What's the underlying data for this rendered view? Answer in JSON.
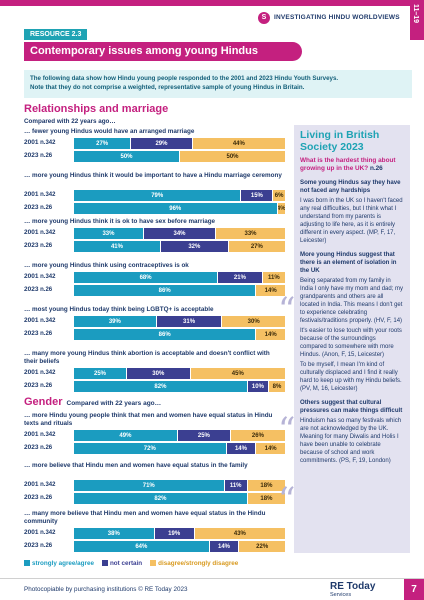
{
  "header": {
    "series_badge": "S",
    "series_text": "INVESTIGATING HINDU WORLDVIEWS",
    "side_tab": "11–19",
    "resource_label": "RESOURCE 2.3",
    "title": "Contemporary issues among young Hindus"
  },
  "intro": {
    "line1": "The following data show how Hindu young people responded to the 2001 and 2023 Hindu Youth Surveys.",
    "line2": "Note that they do not comprise a weighted, representative sample of young Hindus in Britain."
  },
  "relationships": {
    "heading": "Relationships and marriage",
    "compared": "Compared with 22 years ago…",
    "questions": [
      {
        "text": "… fewer young Hindus would have an arranged marriage",
        "rows": [
          {
            "year": "2001",
            "n": "n.342",
            "values": [
              27,
              29,
              44
            ],
            "labels": [
              "27%",
              "29%",
              "44%"
            ]
          },
          {
            "year": "2023",
            "n": "n.26",
            "values": [
              50,
              0,
              50
            ],
            "labels": [
              "50%",
              "",
              "50%"
            ]
          }
        ]
      },
      {
        "text": "… more young Hindus think it would be important to have a Hindu marriage ceremony",
        "rows": [
          {
            "year": "2001",
            "n": "n.342",
            "values": [
              79,
              15,
              6
            ],
            "labels": [
              "79%",
              "15%",
              "6%"
            ]
          },
          {
            "year": "2023",
            "n": "n.26",
            "values": [
              96,
              0,
              4
            ],
            "labels": [
              "96%",
              "",
              "4%"
            ]
          }
        ]
      },
      {
        "text": "… more young Hindus think it is ok to have sex before marriage",
        "rows": [
          {
            "year": "2001",
            "n": "n.342",
            "values": [
              33,
              34,
              33
            ],
            "labels": [
              "33%",
              "34%",
              "33%"
            ]
          },
          {
            "year": "2023",
            "n": "n.26",
            "values": [
              41,
              32,
              27
            ],
            "labels": [
              "41%",
              "32%",
              "27%"
            ]
          }
        ]
      },
      {
        "text": "… more young Hindus think using contraceptives is ok",
        "rows": [
          {
            "year": "2001",
            "n": "n.342",
            "values": [
              68,
              21,
              11
            ],
            "labels": [
              "68%",
              "21%",
              "11%"
            ]
          },
          {
            "year": "2023",
            "n": "n.26",
            "values": [
              86,
              0,
              14
            ],
            "labels": [
              "86%",
              "",
              "14%"
            ]
          }
        ]
      },
      {
        "text": "… most young Hindus today think being LGBTQ+ is acceptable",
        "rows": [
          {
            "year": "2001",
            "n": "n.342",
            "values": [
              39,
              31,
              30
            ],
            "labels": [
              "39%",
              "31%",
              "30%"
            ]
          },
          {
            "year": "2023",
            "n": "n.26",
            "values": [
              86,
              0,
              14
            ],
            "labels": [
              "86%",
              "",
              "14%"
            ]
          }
        ]
      },
      {
        "text": "… many more young Hindus think abortion is acceptable and doesn't conflict with their beliefs",
        "rows": [
          {
            "year": "2001",
            "n": "n.342",
            "values": [
              25,
              30,
              45
            ],
            "labels": [
              "25%",
              "30%",
              "45%"
            ]
          },
          {
            "year": "2023",
            "n": "n.26",
            "values": [
              82,
              10,
              8
            ],
            "labels": [
              "82%",
              "10%",
              "8%"
            ]
          }
        ]
      }
    ]
  },
  "gender": {
    "heading": "Gender",
    "compared": "Compared with 22 years ago…",
    "questions": [
      {
        "text": "… more Hindu young people think that men and women have equal status in Hindu texts and rituals",
        "rows": [
          {
            "year": "2001",
            "n": "n.342",
            "values": [
              49,
              25,
              26
            ],
            "labels": [
              "49%",
              "25%",
              "26%"
            ]
          },
          {
            "year": "2023",
            "n": "n.26",
            "values": [
              72,
              14,
              14
            ],
            "labels": [
              "72%",
              "14%",
              "14%"
            ]
          }
        ]
      },
      {
        "text": "… more believe that Hindu men and women have equal status in the family",
        "rows": [
          {
            "year": "2001",
            "n": "n.342",
            "values": [
              71,
              11,
              18
            ],
            "labels": [
              "71%",
              "11%",
              "18%"
            ]
          },
          {
            "year": "2023",
            "n": "n.26",
            "values": [
              82,
              0,
              18
            ],
            "labels": [
              "82%",
              "",
              "18%"
            ]
          }
        ]
      },
      {
        "text": "… many more believe that Hindu men and women have equal status in the Hindu community",
        "rows": [
          {
            "year": "2001",
            "n": "n.342",
            "values": [
              38,
              19,
              43
            ],
            "labels": [
              "38%",
              "19%",
              "43%"
            ]
          },
          {
            "year": "2023",
            "n": "n.26",
            "values": [
              64,
              14,
              22
            ],
            "labels": [
              "64%",
              "14%",
              "22%"
            ]
          }
        ]
      }
    ]
  },
  "legend": {
    "agree": "strongly agree/agree",
    "notsure": "not certain",
    "disagree": "disagree/strongly disagree"
  },
  "colors": {
    "agree": "#1b9cc0",
    "notsure": "#3b3f91",
    "disagree": "#f5c063",
    "accent": "#c4207f"
  },
  "sidebar": {
    "title": "Living in British Society 2023",
    "question": "What is the hardest thing about growing up in the UK?",
    "question_n": "n.26",
    "blocks": [
      {
        "heading": "Some young Hindus say they have not faced any hardships",
        "quotes": [
          "I was born in the UK so I haven't faced any real difficulties, but I think what I understand from my parents is adjusting to life here, as it is entirely different in every aspect. (MP, F, 17, Leicester)"
        ]
      },
      {
        "heading": "More young Hindus suggest that there is an element of isolation in the UK",
        "quotes": [
          "Being separated from my family in India I only have my mom and dad; my grandparents and others are all located in India. This means I don't get to experience celebrating festivals/traditions properly. (HV, F, 14)",
          "It's easier to lose touch with your roots because of the surroundings compared to somewhere with more Hindus. (Anon, F, 15, Leicester)",
          "To be myself, I mean I'm kind of culturally displaced and I find it really hard to keep up with my Hindu beliefs. (PV, M, 16, Leicester)"
        ]
      },
      {
        "heading": "Others suggest that cultural pressures can make things difficult",
        "quotes": [
          "Hinduism has so many festivals which are not acknowledged by the UK. Meaning for many Diwalis and Holis I have been unable to celebrate because of school and work commitments. (PS, F, 19, London)"
        ]
      }
    ]
  },
  "footer": {
    "text": "Photocopiable by purchasing institutions © RE Today 2023",
    "logo_main": "RE Today",
    "logo_sub": "Services",
    "page_number": "7"
  }
}
